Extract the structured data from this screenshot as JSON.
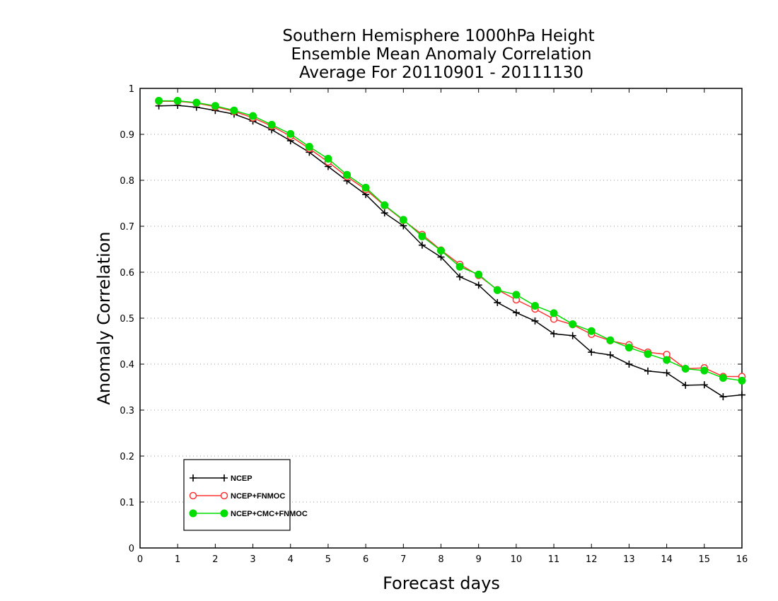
{
  "chart_data": {
    "type": "line",
    "title": [
      "Southern Hemisphere 1000hPa Height",
      "Ensemble Mean Anomaly Correlation",
      "Average For 20110901 - 20111130"
    ],
    "xlabel": "Forecast days",
    "ylabel": "Anomaly Correlation",
    "xlim": [
      0,
      16
    ],
    "ylim": [
      0,
      1
    ],
    "x_ticks": [
      "0",
      "1",
      "2",
      "3",
      "4",
      "5",
      "6",
      "7",
      "8",
      "9",
      "10",
      "11",
      "12",
      "13",
      "14",
      "15",
      "16"
    ],
    "y_ticks": [
      "0",
      "0.1",
      "0.2",
      "0.3",
      "0.4",
      "0.5",
      "0.6",
      "0.7",
      "0.8",
      "0.9",
      "1"
    ],
    "grid": "horizontal dotted",
    "legend_position": "bottom-left",
    "x": [
      0.5,
      1,
      1.5,
      2,
      2.5,
      3,
      3.5,
      4,
      4.5,
      5,
      5.5,
      6,
      6.5,
      7,
      7.5,
      8,
      8.5,
      9,
      9.5,
      10,
      10.5,
      11,
      11.5,
      12,
      12.5,
      13,
      13.5,
      14,
      14.5,
      15,
      15.5,
      16
    ],
    "series": [
      {
        "name": "NCEP",
        "color": "#000000",
        "marker": "plus",
        "values": [
          0.962,
          0.963,
          0.959,
          0.952,
          0.944,
          0.929,
          0.91,
          0.886,
          0.861,
          0.83,
          0.799,
          0.769,
          0.729,
          0.701,
          0.659,
          0.633,
          0.59,
          0.572,
          0.534,
          0.512,
          0.494,
          0.466,
          0.462,
          0.426,
          0.42,
          0.4,
          0.385,
          0.381,
          0.354,
          0.355,
          0.329,
          0.333
        ]
      },
      {
        "name": "NCEP+FNMOC",
        "color": "#ff3333",
        "marker": "open-circle",
        "values": [
          0.972,
          0.972,
          0.968,
          0.96,
          0.95,
          0.936,
          0.918,
          0.896,
          0.869,
          0.84,
          0.808,
          0.78,
          0.745,
          0.713,
          0.682,
          0.648,
          0.617,
          0.593,
          0.562,
          0.54,
          0.52,
          0.498,
          0.486,
          0.465,
          0.451,
          0.442,
          0.426,
          0.421,
          0.39,
          0.392,
          0.373,
          0.373
        ]
      },
      {
        "name": "NCEP+CMC+FNMOC",
        "color": "#00dd00",
        "marker": "filled-circle",
        "values": [
          0.973,
          0.973,
          0.969,
          0.962,
          0.952,
          0.94,
          0.921,
          0.901,
          0.873,
          0.847,
          0.812,
          0.784,
          0.746,
          0.714,
          0.678,
          0.647,
          0.612,
          0.595,
          0.561,
          0.551,
          0.527,
          0.511,
          0.487,
          0.472,
          0.452,
          0.436,
          0.422,
          0.409,
          0.39,
          0.386,
          0.37,
          0.364
        ]
      }
    ]
  }
}
